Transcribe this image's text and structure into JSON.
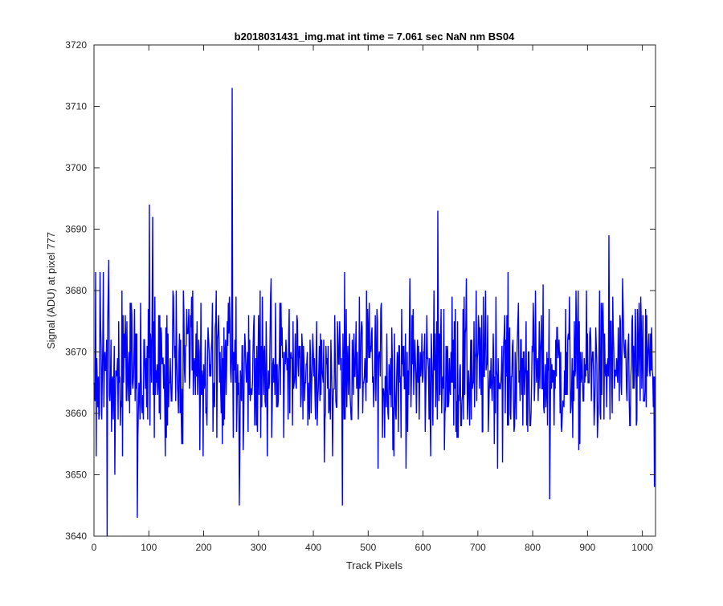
{
  "chart_data": {
    "type": "line",
    "title": "b2018031431_img.mat int time = 7.061 sec  NaN nm BS04",
    "xlabel": "Track Pixels",
    "ylabel": "Signal (ADU) at pixel 777",
    "xlim": [
      0,
      1024
    ],
    "ylim": [
      3640,
      3720
    ],
    "xticks": [
      0,
      100,
      200,
      300,
      400,
      500,
      600,
      700,
      800,
      900,
      1000
    ],
    "yticks": [
      3640,
      3650,
      3660,
      3670,
      3680,
      3690,
      3700,
      3710,
      3720
    ],
    "xtick_labels": [
      "0",
      "100",
      "200",
      "300",
      "400",
      "500",
      "600",
      "700",
      "800",
      "900",
      "1000"
    ],
    "ytick_labels": [
      "3640",
      "3650",
      "3660",
      "3670",
      "3680",
      "3690",
      "3700",
      "3710",
      "3720"
    ],
    "grid": false,
    "series": [
      {
        "color": "#0000ff",
        "n_points": 1024,
        "mean": 3667,
        "noise_range": [
          3643,
          3690
        ],
        "peaks": [
          {
            "x": 1,
            "y": 3663
          },
          {
            "x": 3,
            "y": 3683
          },
          {
            "x": 7,
            "y": 3661
          },
          {
            "x": 11,
            "y": 3683
          },
          {
            "x": 14,
            "y": 3659
          },
          {
            "x": 17,
            "y": 3683
          },
          {
            "x": 24,
            "y": 3640
          },
          {
            "x": 27,
            "y": 3685
          },
          {
            "x": 38,
            "y": 3650
          },
          {
            "x": 79,
            "y": 3643
          },
          {
            "x": 101,
            "y": 3694
          },
          {
            "x": 107,
            "y": 3692
          },
          {
            "x": 252,
            "y": 3713
          },
          {
            "x": 265,
            "y": 3645
          },
          {
            "x": 323,
            "y": 3682
          },
          {
            "x": 453,
            "y": 3645
          },
          {
            "x": 627,
            "y": 3693
          },
          {
            "x": 831,
            "y": 3646
          },
          {
            "x": 939,
            "y": 3689
          },
          {
            "x": 1022,
            "y": 3648
          }
        ]
      }
    ]
  }
}
